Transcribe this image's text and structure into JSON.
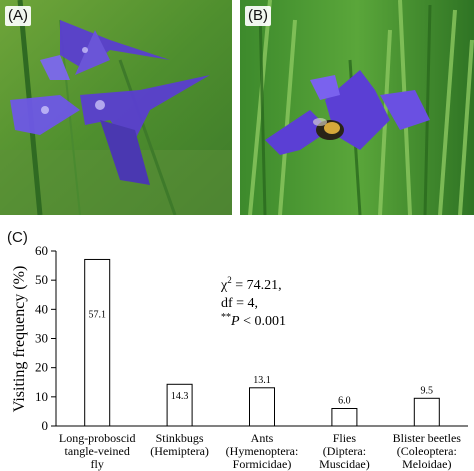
{
  "panels": {
    "a": "(A)",
    "b": "(B)",
    "c": "(C)"
  },
  "photos": {
    "a": {
      "subject": "blue-violet larkspur flowers",
      "background_color": "#4f8f2e",
      "flower_color": "#5a3fd0"
    },
    "b": {
      "subject": "bee visiting blue-violet flower among grass",
      "background_color": "#3f8a2c",
      "flower_color": "#5b3fd4"
    }
  },
  "chart_data": {
    "type": "bar",
    "ylabel": "Visiting frequency (%)",
    "xlabel": "",
    "ylim": [
      0,
      60
    ],
    "yticks": [
      0,
      10,
      20,
      30,
      40,
      50,
      60
    ],
    "categories": [
      [
        "Long-proboscid",
        "tangle-veined",
        "fly"
      ],
      [
        "Stinkbugs",
        "(Hemiptera)"
      ],
      [
        "Ants",
        "(Hymenoptera:",
        "Formicidae)"
      ],
      [
        "Flies",
        "(Diptera:",
        "Muscidae)"
      ],
      [
        "Blister beetles",
        "(Coleoptera:",
        "Meloidae)"
      ]
    ],
    "values": [
      57.1,
      14.3,
      13.1,
      6.0,
      9.5
    ],
    "value_labels": [
      "57.1",
      "14.3",
      "13.1",
      "6.0",
      "9.5"
    ],
    "stats": {
      "chi_symbol": "χ",
      "chi_sup": "2",
      "chi_value": " = 74.21,",
      "df": "df = 4,",
      "p_prefix": "**",
      "p_symbol": "P",
      "p_value": " < 0.001"
    },
    "bar_fill": "#ffffff",
    "bar_stroke": "#000000"
  }
}
